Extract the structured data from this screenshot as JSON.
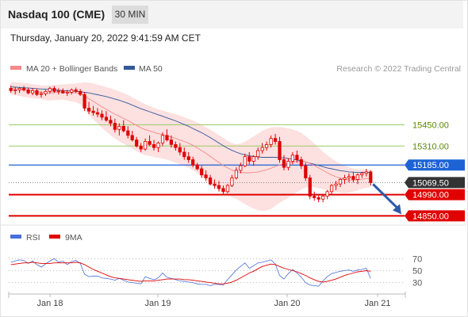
{
  "header": {
    "instrument": "Nasdaq 100 (CME)",
    "timeframe": "30 MIN",
    "datetime": "Thursday, January 20, 2022 9:41:59 AM CET"
  },
  "legend": {
    "bollinger_label": "MA 20 + Bollinger Bands",
    "bollinger_color": "#f48a8a",
    "ma50_label": "MA 50",
    "ma50_color": "#33599a",
    "credit": "Research © 2022 Trading Central"
  },
  "price_levels": [
    {
      "label": "15450.00",
      "value": 15450,
      "kind": "resistance",
      "color": "#9ccc65",
      "text_color": "#5a8a00"
    },
    {
      "label": "15310.00",
      "value": 15310,
      "kind": "resistance",
      "color": "#9ccc65",
      "text_color": "#5a8a00"
    },
    {
      "label": "15185.00",
      "value": 15185,
      "kind": "pivot",
      "color": "#1e63d6",
      "text_color": "#ffffff"
    },
    {
      "label": "15069.50",
      "value": 15069.5,
      "kind": "last",
      "color": "#333333",
      "text_color": "#ffffff"
    },
    {
      "label": "14990.00",
      "value": 14990,
      "kind": "support",
      "color": "#e00000",
      "text_color": "#ffffff"
    },
    {
      "label": "14850.00",
      "value": 14850,
      "kind": "support",
      "color": "#e00000",
      "text_color": "#ffffff"
    }
  ],
  "rsi_legend": {
    "rsi_label": "RSI",
    "rsi_color": "#4a6fd8",
    "ma_label": "9MA",
    "ma_color": "#e00000"
  },
  "rsi_levels": [
    {
      "label": "70",
      "value": 70
    },
    {
      "label": "50",
      "value": 50
    },
    {
      "label": "30",
      "value": 30
    }
  ],
  "x_axis_labels": [
    "Jan 18",
    "Jan 19",
    "Jan 20",
    "Jan 21"
  ],
  "chart_data": {
    "type": "candlestick",
    "candle_color": "#e00000",
    "band_fill": "#fde0e0",
    "ylim": [
      14800,
      15750
    ],
    "rsi_ylim": [
      15,
      85
    ],
    "candles": [
      [
        15690,
        15710,
        15660,
        15675
      ],
      [
        15675,
        15700,
        15650,
        15680
      ],
      [
        15680,
        15700,
        15660,
        15690
      ],
      [
        15690,
        15705,
        15670,
        15680
      ],
      [
        15680,
        15695,
        15650,
        15660
      ],
      [
        15660,
        15690,
        15645,
        15675
      ],
      [
        15675,
        15690,
        15640,
        15650
      ],
      [
        15650,
        15670,
        15630,
        15655
      ],
      [
        15655,
        15680,
        15640,
        15670
      ],
      [
        15670,
        15700,
        15655,
        15690
      ],
      [
        15690,
        15705,
        15660,
        15670
      ],
      [
        15670,
        15690,
        15650,
        15675
      ],
      [
        15675,
        15690,
        15655,
        15660
      ],
      [
        15660,
        15680,
        15640,
        15665
      ],
      [
        15665,
        15690,
        15650,
        15680
      ],
      [
        15680,
        15695,
        15660,
        15670
      ],
      [
        15670,
        15685,
        15640,
        15650
      ],
      [
        15650,
        15665,
        15540,
        15560
      ],
      [
        15560,
        15600,
        15520,
        15540
      ],
      [
        15540,
        15575,
        15510,
        15530
      ],
      [
        15530,
        15560,
        15500,
        15520
      ],
      [
        15520,
        15545,
        15480,
        15500
      ],
      [
        15500,
        15540,
        15470,
        15480
      ],
      [
        15480,
        15510,
        15440,
        15460
      ],
      [
        15460,
        15490,
        15400,
        15420
      ],
      [
        15420,
        15460,
        15380,
        15440
      ],
      [
        15440,
        15480,
        15400,
        15410
      ],
      [
        15410,
        15440,
        15360,
        15380
      ],
      [
        15380,
        15410,
        15340,
        15350
      ],
      [
        15350,
        15370,
        15300,
        15310
      ],
      [
        15310,
        15330,
        15270,
        15290
      ],
      [
        15290,
        15360,
        15280,
        15340
      ],
      [
        15340,
        15380,
        15310,
        15320
      ],
      [
        15320,
        15350,
        15280,
        15300
      ],
      [
        15300,
        15340,
        15270,
        15330
      ],
      [
        15330,
        15400,
        15310,
        15380
      ],
      [
        15380,
        15420,
        15340,
        15350
      ],
      [
        15350,
        15380,
        15300,
        15320
      ],
      [
        15320,
        15340,
        15280,
        15300
      ],
      [
        15300,
        15330,
        15250,
        15270
      ],
      [
        15270,
        15300,
        15220,
        15240
      ],
      [
        15240,
        15270,
        15200,
        15220
      ],
      [
        15220,
        15240,
        15170,
        15185
      ],
      [
        15185,
        15200,
        15150,
        15160
      ],
      [
        15160,
        15180,
        15100,
        15120
      ],
      [
        15120,
        15150,
        15080,
        15100
      ],
      [
        15100,
        15120,
        15050,
        15060
      ],
      [
        15060,
        15090,
        15030,
        15050
      ],
      [
        15050,
        15080,
        15010,
        15030
      ],
      [
        15030,
        15050,
        14990,
        15010
      ],
      [
        15010,
        15060,
        15000,
        15050
      ],
      [
        15050,
        15120,
        15040,
        15100
      ],
      [
        15100,
        15170,
        15090,
        15150
      ],
      [
        15150,
        15200,
        15130,
        15180
      ],
      [
        15180,
        15260,
        15170,
        15240
      ],
      [
        15240,
        15270,
        15190,
        15210
      ],
      [
        15210,
        15250,
        15180,
        15240
      ],
      [
        15240,
        15300,
        15220,
        15280
      ],
      [
        15280,
        15330,
        15260,
        15300
      ],
      [
        15300,
        15340,
        15280,
        15320
      ],
      [
        15320,
        15380,
        15300,
        15360
      ],
      [
        15360,
        15390,
        15320,
        15340
      ],
      [
        15340,
        15370,
        15200,
        15220
      ],
      [
        15220,
        15250,
        15150,
        15170
      ],
      [
        15170,
        15230,
        15150,
        15210
      ],
      [
        15210,
        15270,
        15190,
        15250
      ],
      [
        15250,
        15280,
        15200,
        15220
      ],
      [
        15220,
        15240,
        15160,
        15180
      ],
      [
        15180,
        15200,
        15080,
        15100
      ],
      [
        15100,
        15120,
        14960,
        14980
      ],
      [
        14980,
        15010,
        14950,
        14970
      ],
      [
        14970,
        14990,
        14940,
        14960
      ],
      [
        14960,
        14990,
        14940,
        14980
      ],
      [
        14980,
        15020,
        14960,
        15010
      ],
      [
        15010,
        15060,
        14990,
        15050
      ],
      [
        15050,
        15080,
        15020,
        15060
      ],
      [
        15060,
        15100,
        15040,
        15090
      ],
      [
        15090,
        15120,
        15060,
        15100
      ],
      [
        15100,
        15130,
        15070,
        15110
      ],
      [
        15110,
        15140,
        15070,
        15090
      ],
      [
        15090,
        15130,
        15060,
        15120
      ],
      [
        15120,
        15140,
        15100,
        15130
      ],
      [
        15130,
        15160,
        15110,
        15140
      ],
      [
        15140,
        15150,
        15050,
        15069.5
      ]
    ],
    "ma20": [
      15690,
      15688,
      15684,
      15680,
      15676,
      15672,
      15668,
      15664,
      15660,
      15660,
      15662,
      15664,
      15666,
      15664,
      15662,
      15660,
      15656,
      15640,
      15622,
      15604,
      15586,
      15568,
      15552,
      15536,
      15520,
      15506,
      15492,
      15478,
      15462,
      15446,
      15430,
      15418,
      15410,
      15400,
      15392,
      15386,
      15378,
      15370,
      15360,
      15350,
      15340,
      15328,
      15314,
      15298,
      15280,
      15262,
      15242,
      15222,
      15202,
      15182,
      15166,
      15152,
      15142,
      15136,
      15134,
      15134,
      15136,
      15140,
      15146,
      15154,
      15164,
      15176,
      15186,
      15192,
      15198,
      15204,
      15208,
      15210,
      15206,
      15196,
      15182,
      15166,
      15150,
      15134,
      15120,
      15108,
      15098,
      15090,
      15086,
      15086,
      15088,
      15092,
      15096,
      15098
    ],
    "band_upper": [
      15730,
      15730,
      15728,
      15726,
      15722,
      15718,
      15714,
      15710,
      15708,
      15710,
      15712,
      15714,
      15716,
      15718,
      15720,
      15722,
      15726,
      15730,
      15728,
      15722,
      15714,
      15706,
      15698,
      15690,
      15680,
      15670,
      15658,
      15646,
      15632,
      15616,
      15600,
      15586,
      15574,
      15562,
      15552,
      15544,
      15536,
      15528,
      15520,
      15510,
      15500,
      15490,
      15478,
      15464,
      15450,
      15434,
      15418,
      15400,
      15382,
      15362,
      15344,
      15330,
      15322,
      15326,
      15340,
      15356,
      15374,
      15392,
      15410,
      15424,
      15432,
      15436,
      15436,
      15432,
      15426,
      15420,
      15410,
      15396,
      15376,
      15352,
      15326,
      15300,
      15274,
      15250,
      15228,
      15210,
      15194,
      15180,
      15170,
      15162,
      15158,
      15156,
      15156,
      15156
    ],
    "band_lower": [
      15650,
      15646,
      15640,
      15634,
      15630,
      15626,
      15622,
      15618,
      15612,
      15610,
      15612,
      15614,
      15616,
      15610,
      15604,
      15598,
      15586,
      15550,
      15516,
      15486,
      15458,
      15430,
      15406,
      15382,
      15360,
      15342,
      15326,
      15310,
      15292,
      15276,
      15260,
      15250,
      15246,
      15238,
      15232,
      15228,
      15220,
      15212,
      15200,
      15190,
      15180,
      15166,
      15150,
      15132,
      15110,
      15090,
      15066,
      15044,
      15022,
      15002,
      14988,
      14974,
      14962,
      14946,
      14928,
      14912,
      14898,
      14888,
      14882,
      14884,
      14896,
      14916,
      14936,
      14952,
      14970,
      14988,
      15006,
      15024,
      15036,
      15040,
      15038,
      15032,
      15026,
      15018,
      15012,
      15006,
      15002,
      15000,
      15002,
      15010,
      15018,
      15028,
      15036,
      15040
    ],
    "ma50": [
      15700,
      15698,
      15696,
      15694,
      15692,
      15690,
      15688,
      15686,
      15684,
      15682,
      15680,
      15678,
      15676,
      15674,
      15672,
      15670,
      15668,
      15664,
      15660,
      15654,
      15648,
      15642,
      15636,
      15628,
      15620,
      15612,
      15602,
      15592,
      15580,
      15568,
      15556,
      15546,
      15536,
      15526,
      15516,
      15506,
      15496,
      15486,
      15476,
      15464,
      15452,
      15440,
      15426,
      15412,
      15398,
      15382,
      15366,
      15348,
      15330,
      15312,
      15296,
      15282,
      15270,
      15260,
      15252,
      15246,
      15242,
      15238,
      15236,
      15236,
      15236,
      15236,
      15234,
      15232,
      15228,
      15224,
      15218,
      15212,
      15206,
      15198,
      15190,
      15182,
      15174,
      15166,
      15160,
      15154,
      15148,
      15144,
      15140,
      15138,
      15136,
      15136,
      15136,
      15136
    ],
    "rsi": [
      64,
      66,
      68,
      67,
      62,
      66,
      60,
      56,
      61,
      66,
      70,
      64,
      66,
      60,
      65,
      67,
      62,
      44,
      40,
      41,
      41,
      38,
      37,
      36,
      34,
      37,
      34,
      31,
      30,
      29,
      28,
      40,
      37,
      35,
      38,
      46,
      39,
      37,
      35,
      33,
      32,
      31,
      30,
      28,
      27,
      27,
      25,
      27,
      27,
      26,
      35,
      43,
      51,
      57,
      63,
      54,
      58,
      63,
      64,
      66,
      68,
      61,
      42,
      36,
      45,
      52,
      46,
      39,
      30,
      26,
      25,
      24,
      33,
      40,
      45,
      47,
      49,
      50,
      51,
      49,
      51,
      52,
      54,
      37
    ],
    "rsi_ma": [
      60,
      61,
      62,
      63,
      63,
      64,
      63,
      62,
      62,
      62,
      63,
      63,
      63,
      63,
      63,
      64,
      63,
      60,
      56,
      52,
      49,
      46,
      43,
      40,
      38,
      37,
      36,
      35,
      34,
      33,
      32,
      33,
      33,
      33,
      34,
      35,
      36,
      36,
      36,
      36,
      35,
      35,
      34,
      33,
      32,
      31,
      30,
      29,
      28,
      28,
      29,
      31,
      34,
      38,
      42,
      46,
      49,
      53,
      57,
      59,
      61,
      60,
      57,
      54,
      52,
      50,
      48,
      45,
      42,
      38,
      35,
      32,
      31,
      32,
      34,
      36,
      39,
      42,
      44,
      46,
      48,
      49,
      50,
      49
    ]
  }
}
